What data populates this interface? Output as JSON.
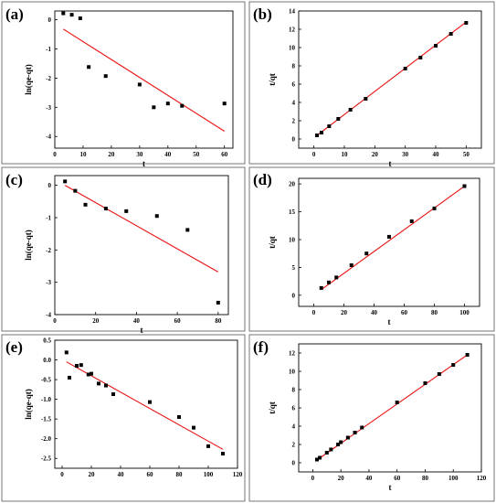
{
  "chart_data": [
    {
      "panel_label": "(a)",
      "type": "scatter",
      "xlabel": "t",
      "ylabel": "ln(qe-qt)",
      "xlim": [
        0,
        63
      ],
      "ylim": [
        -4.4,
        0.3
      ],
      "xticks": [
        0,
        10,
        20,
        30,
        40,
        50,
        60
      ],
      "yticks": [
        0,
        -1,
        -2,
        -3,
        -4
      ],
      "x": [
        3,
        6,
        9,
        12,
        18,
        30,
        35,
        40,
        45,
        60
      ],
      "y": [
        0.22,
        0.17,
        0.05,
        -1.62,
        -1.93,
        -2.22,
        -3.0,
        -2.87,
        -2.95,
        -2.87
      ],
      "fit": [
        [
          3,
          -0.32
        ],
        [
          60,
          -3.82
        ]
      ],
      "marker_color": "#000000",
      "fit_color": "#e81010"
    },
    {
      "panel_label": "(b)",
      "type": "scatter",
      "xlabel": "t",
      "ylabel": "t/qt",
      "xlim": [
        -5,
        55
      ],
      "ylim": [
        -1,
        14
      ],
      "xticks": [
        0,
        10,
        20,
        30,
        40,
        50
      ],
      "yticks": [
        0,
        2,
        4,
        6,
        8,
        10,
        12,
        14
      ],
      "x": [
        1,
        2.5,
        5,
        8,
        12,
        17,
        30,
        35,
        40,
        45,
        50
      ],
      "y": [
        0.4,
        0.7,
        1.4,
        2.2,
        3.2,
        4.4,
        7.7,
        8.9,
        10.2,
        11.5,
        12.7
      ],
      "fit": [
        [
          1,
          0.4
        ],
        [
          50,
          12.8
        ]
      ],
      "marker_color": "#000000",
      "fit_color": "#e81010"
    },
    {
      "panel_label": "(c)",
      "type": "scatter",
      "xlabel": "t",
      "ylabel": "ln(qe-qt)",
      "xlim": [
        0,
        85
      ],
      "ylim": [
        -4,
        0.3
      ],
      "xticks": [
        0,
        20,
        40,
        60,
        80
      ],
      "yticks": [
        0,
        -1,
        -2,
        -3,
        -4
      ],
      "x": [
        5,
        10,
        15,
        25,
        35,
        50,
        65,
        80
      ],
      "y": [
        0.12,
        -0.17,
        -0.6,
        -0.72,
        -0.8,
        -0.95,
        -1.38,
        -3.63
      ],
      "fit": [
        [
          5,
          0.0
        ],
        [
          80,
          -2.68
        ]
      ],
      "marker_color": "#000000",
      "fit_color": "#e81010"
    },
    {
      "panel_label": "(d)",
      "type": "scatter",
      "xlabel": "t",
      "ylabel": "t/qt",
      "xlim": [
        -10,
        110
      ],
      "ylim": [
        -2,
        21
      ],
      "xticks": [
        0,
        20,
        40,
        60,
        80,
        100
      ],
      "yticks": [
        0,
        5,
        10,
        15,
        20
      ],
      "x": [
        5,
        10,
        15,
        25,
        35,
        50,
        65,
        80,
        100
      ],
      "y": [
        1.3,
        2.3,
        3.2,
        5.4,
        7.5,
        10.5,
        13.3,
        15.6,
        19.6
      ],
      "fit": [
        [
          5,
          1.0
        ],
        [
          100,
          19.6
        ]
      ],
      "marker_color": "#000000",
      "fit_color": "#e81010"
    },
    {
      "panel_label": "(e)",
      "type": "scatter",
      "xlabel": "",
      "ylabel": "ln(qe-qt)",
      "xlim": [
        -5,
        120
      ],
      "ylim": [
        -2.75,
        0.5
      ],
      "xticks": [
        0,
        20,
        40,
        60,
        80,
        100,
        120
      ],
      "yticks": [
        0.5,
        0.0,
        -0.5,
        -1.0,
        -1.5,
        -2.0,
        -2.5
      ],
      "ytick_labels": [
        "0.5",
        "0.0",
        "-0.5",
        "-1.0",
        "-1.5",
        "-2.0",
        "-2.5"
      ],
      "x": [
        3,
        5,
        10,
        13,
        18,
        20,
        25,
        30,
        35,
        60,
        80,
        90,
        100,
        110
      ],
      "y": [
        0.19,
        -0.45,
        -0.15,
        -0.13,
        -0.37,
        -0.35,
        -0.6,
        -0.65,
        -0.87,
        -1.07,
        -1.45,
        -1.72,
        -2.19,
        -2.38
      ],
      "fit": [
        [
          3,
          -0.05
        ],
        [
          110,
          -2.27
        ]
      ],
      "marker_color": "#000000",
      "fit_color": "#e81010"
    },
    {
      "panel_label": "(f)",
      "type": "scatter",
      "xlabel": "t",
      "ylabel": "t/qt",
      "xlim": [
        -10,
        120
      ],
      "ylim": [
        -1,
        13
      ],
      "xticks": [
        0,
        20,
        40,
        60,
        80,
        100,
        120
      ],
      "yticks": [
        0,
        2,
        4,
        6,
        8,
        10,
        12
      ],
      "x": [
        3,
        5,
        10,
        13,
        18,
        20,
        25,
        30,
        35,
        60,
        80,
        90,
        100,
        110
      ],
      "y": [
        0.35,
        0.55,
        1.1,
        1.45,
        2.0,
        2.25,
        2.75,
        3.3,
        3.85,
        6.6,
        8.7,
        9.7,
        10.7,
        11.8
      ],
      "fit": [
        [
          3,
          0.3
        ],
        [
          110,
          11.8
        ]
      ],
      "marker_color": "#000000",
      "fit_color": "#e81010"
    }
  ]
}
